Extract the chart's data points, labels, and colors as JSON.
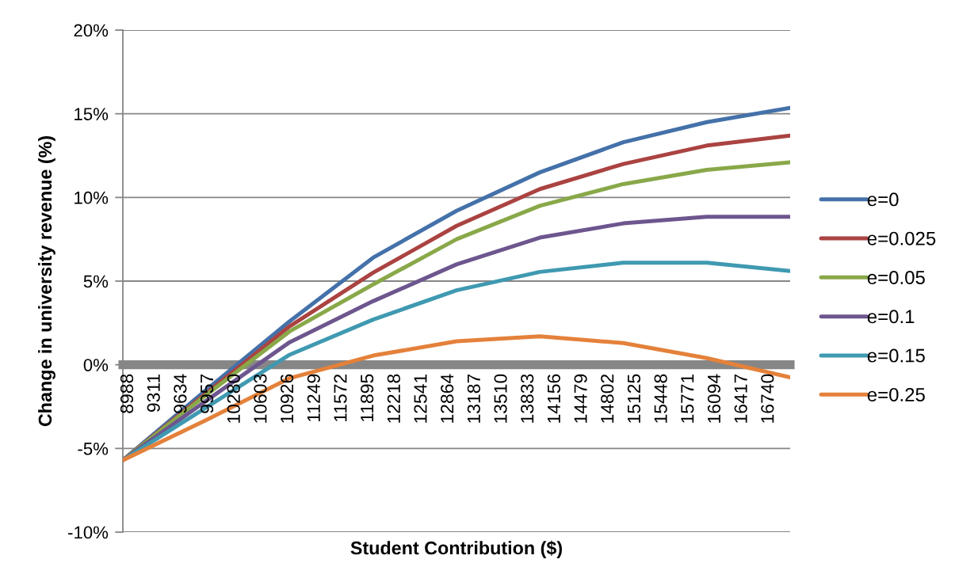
{
  "chart_data": {
    "type": "line",
    "xlabel": "Student Contribution ($)",
    "ylabel": "Change in university revenue (%)",
    "x": [
      8988,
      9997,
      11007,
      12016,
      13026,
      14035,
      15044,
      16054,
      17063
    ],
    "xlim": [
      8988,
      17063
    ],
    "xticks": [
      8988,
      9311,
      9634,
      9957,
      10280,
      10603,
      10926,
      11249,
      11572,
      11895,
      12218,
      12541,
      12864,
      13187,
      13510,
      13833,
      14156,
      14479,
      14802,
      15125,
      15448,
      15771,
      16094,
      16417,
      16740
    ],
    "ylim": [
      -10,
      20
    ],
    "yticks": [
      {
        "value": -10,
        "label": "-10%"
      },
      {
        "value": -5,
        "label": "-5%"
      },
      {
        "value": 0,
        "label": "0%"
      },
      {
        "value": 5,
        "label": "5%"
      },
      {
        "value": 10,
        "label": "10%"
      },
      {
        "value": 15,
        "label": "15%"
      },
      {
        "value": 20,
        "label": "20%"
      }
    ],
    "series": [
      {
        "name": "e=0",
        "color": "#4471a9",
        "values": [
          -5.7,
          -1.5,
          2.6,
          6.4,
          9.2,
          11.5,
          13.3,
          14.5,
          15.35
        ]
      },
      {
        "name": "e=0.025",
        "color": "#aa4341",
        "values": [
          -5.7,
          -1.7,
          2.3,
          5.5,
          8.3,
          10.5,
          12.0,
          13.1,
          13.7
        ]
      },
      {
        "name": "e=0.05",
        "color": "#89a849",
        "values": [
          -5.7,
          -1.8,
          2.0,
          4.8,
          7.5,
          9.5,
          10.8,
          11.65,
          12.1
        ]
      },
      {
        "name": "e=0.1",
        "color": "#6d568e",
        "values": [
          -5.7,
          -2.15,
          1.35,
          3.8,
          6.0,
          7.6,
          8.45,
          8.85,
          8.85
        ]
      },
      {
        "name": "e=0.15",
        "color": "#3f99b1",
        "values": [
          -5.7,
          -2.55,
          0.6,
          2.7,
          4.45,
          5.55,
          6.1,
          6.1,
          5.6
        ]
      },
      {
        "name": "e=0.25",
        "color": "#e4813a",
        "values": [
          -5.7,
          -3.3,
          -0.8,
          0.55,
          1.4,
          1.7,
          1.3,
          0.4,
          -0.75
        ]
      }
    ],
    "grid": "y",
    "legend": "right",
    "line_style": "solid"
  }
}
